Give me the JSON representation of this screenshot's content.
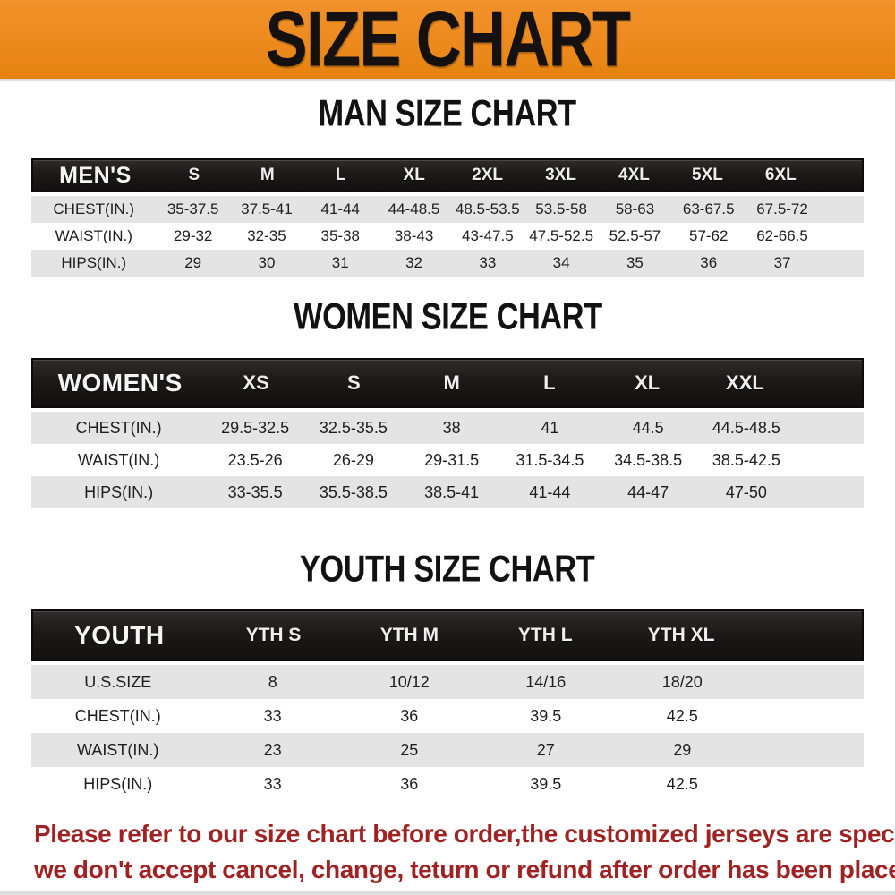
{
  "banner": {
    "title": "SIZE CHART"
  },
  "sections": [
    {
      "id": "men",
      "heading": "MAN SIZE CHART",
      "header_label": "MEN'S",
      "columns": [
        "S",
        "M",
        "L",
        "XL",
        "2XL",
        "3XL",
        "4XL",
        "5XL",
        "6XL"
      ],
      "rows": [
        {
          "label": "CHEST(IN.)",
          "values": [
            "35-37.5",
            "37.5-41",
            "41-44",
            "44-48.5",
            "48.5-53.5",
            "53.5-58",
            "58-63",
            "63-67.5",
            "67.5-72"
          ]
        },
        {
          "label": "WAIST(IN.)",
          "values": [
            "29-32",
            "32-35",
            "35-38",
            "38-43",
            "43-47.5",
            "47.5-52.5",
            "52.5-57",
            "57-62",
            "62-66.5"
          ]
        },
        {
          "label": "HIPS(IN.)",
          "values": [
            "29",
            "30",
            "31",
            "32",
            "33",
            "34",
            "35",
            "36",
            "37"
          ]
        }
      ]
    },
    {
      "id": "women",
      "heading": "WOMEN SIZE CHART",
      "header_label": "WOMEN'S",
      "columns": [
        "XS",
        "S",
        "M",
        "L",
        "XL",
        "XXL"
      ],
      "rows": [
        {
          "label": "CHEST(IN.)",
          "values": [
            "29.5-32.5",
            "32.5-35.5",
            "38",
            "41",
            "44.5",
            "44.5-48.5"
          ]
        },
        {
          "label": "WAIST(IN.)",
          "values": [
            "23.5-26",
            "26-29",
            "29-31.5",
            "31.5-34.5",
            "34.5-38.5",
            "38.5-42.5"
          ]
        },
        {
          "label": "HIPS(IN.)",
          "values": [
            "33-35.5",
            "35.5-38.5",
            "38.5-41",
            "41-44",
            "44-47",
            "47-50"
          ]
        }
      ]
    },
    {
      "id": "youth",
      "heading": "YOUTH SIZE CHART",
      "header_label": "YOUTH",
      "columns": [
        "YTH S",
        "YTH M",
        "YTH L",
        "YTH XL"
      ],
      "rows": [
        {
          "label": "U.S.SIZE",
          "values": [
            "8",
            "10/12",
            "14/16",
            "18/20"
          ]
        },
        {
          "label": "CHEST(IN.)",
          "values": [
            "33",
            "36",
            "39.5",
            "42.5"
          ]
        },
        {
          "label": "WAIST(IN.)",
          "values": [
            "23",
            "25",
            "27",
            "29"
          ]
        },
        {
          "label": "HIPS(IN.)",
          "values": [
            "33",
            "36",
            "39.5",
            "42.5"
          ]
        }
      ]
    }
  ],
  "disclaimer": {
    "line1": "Please refer to our size chart before order,the customized jerseys are special products,",
    "line2": "we don't accept cancel, change, teturn or refund after order has been placed!"
  },
  "colors": {
    "banner_orange": "#ed8a1e",
    "banner_orange_light": "#f1922a",
    "banner_orange_dark": "#e48310",
    "bar_black": "#1c1918",
    "row_gray": "#e4e4e4",
    "disclaimer_red": "#a02323"
  }
}
